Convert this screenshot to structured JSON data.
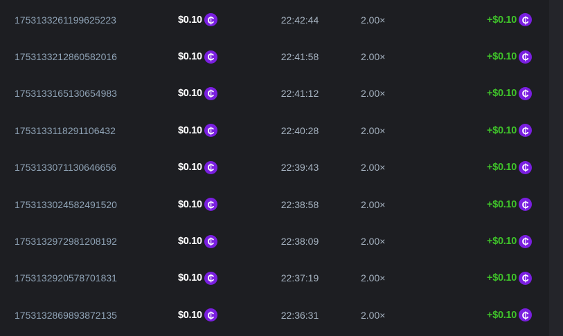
{
  "colors": {
    "background": "#1d1e22",
    "coin": "#7a1fe0",
    "payout": "#3fc22a"
  },
  "coin_icon": "cent-coin-icon",
  "coin_glyph": "₵",
  "rows": [
    {
      "id": "1753133261199625223",
      "amount": "$0.10",
      "time": "22:42:44",
      "multiplier": "2.00×",
      "payout": "+$0.10"
    },
    {
      "id": "1753133212860582016",
      "amount": "$0.10",
      "time": "22:41:58",
      "multiplier": "2.00×",
      "payout": "+$0.10"
    },
    {
      "id": "1753133165130654983",
      "amount": "$0.10",
      "time": "22:41:12",
      "multiplier": "2.00×",
      "payout": "+$0.10"
    },
    {
      "id": "1753133118291106432",
      "amount": "$0.10",
      "time": "22:40:28",
      "multiplier": "2.00×",
      "payout": "+$0.10"
    },
    {
      "id": "1753133071130646656",
      "amount": "$0.10",
      "time": "22:39:43",
      "multiplier": "2.00×",
      "payout": "+$0.10"
    },
    {
      "id": "1753133024582491520",
      "amount": "$0.10",
      "time": "22:38:58",
      "multiplier": "2.00×",
      "payout": "+$0.10"
    },
    {
      "id": "1753132972981208192",
      "amount": "$0.10",
      "time": "22:38:09",
      "multiplier": "2.00×",
      "payout": "+$0.10"
    },
    {
      "id": "1753132920578701831",
      "amount": "$0.10",
      "time": "22:37:19",
      "multiplier": "2.00×",
      "payout": "+$0.10"
    },
    {
      "id": "1753132869893872135",
      "amount": "$0.10",
      "time": "22:36:31",
      "multiplier": "2.00×",
      "payout": "+$0.10"
    }
  ]
}
